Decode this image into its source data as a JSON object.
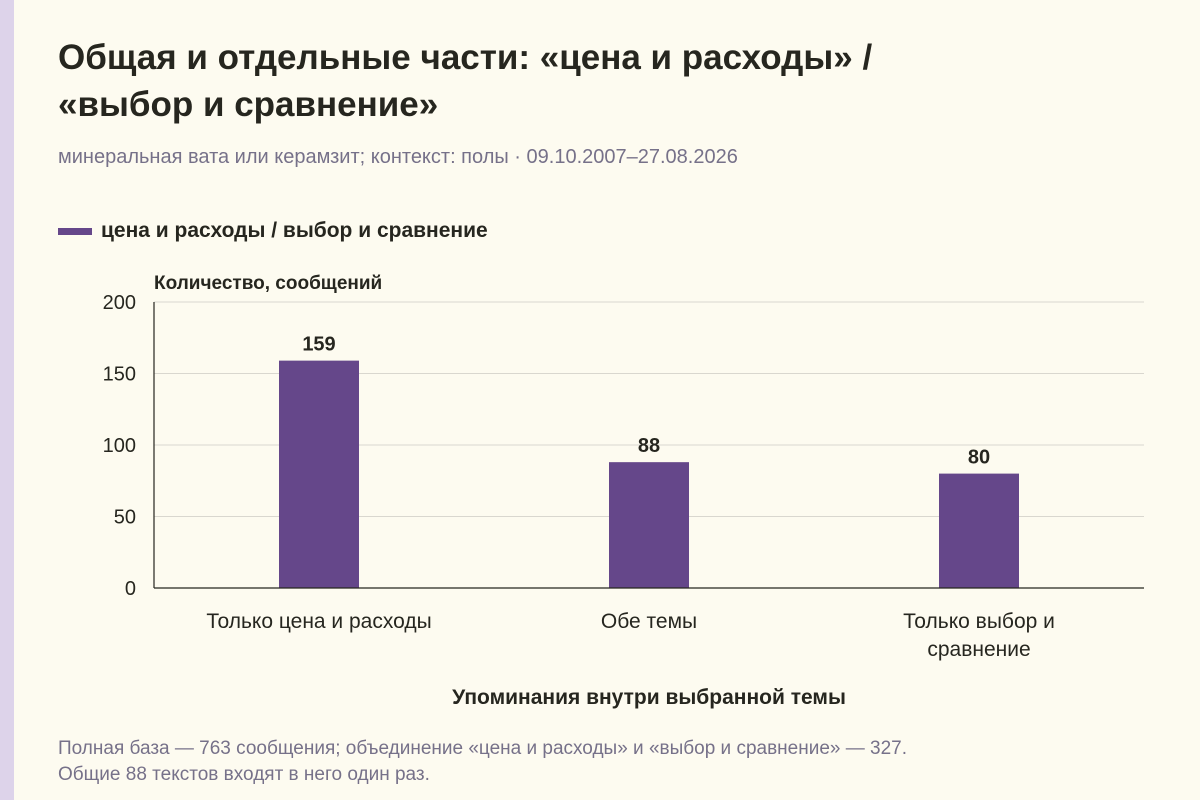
{
  "page": {
    "title_line1": "Общая и отдельные части: «цена и расходы» /",
    "title_line2": "«выбор и сравнение»",
    "subtitle": "минеральная вата или керамзит; контекст: полы · 09.10.2007–27.08.2026",
    "footnote_line1": "Полная база — 763 сообщения; объединение «цена и расходы» и «выбор и сравнение» — 327.",
    "footnote_line2": "Общие 88 текстов входят в него один раз."
  },
  "chart_data": {
    "type": "bar",
    "categories": [
      [
        "Только цена и расходы"
      ],
      [
        "Обе темы"
      ],
      [
        "Только выбор и",
        "сравнение"
      ]
    ],
    "series": [
      {
        "name": "цена и расходы / выбор и сравнение",
        "values": [
          159,
          88,
          80
        ],
        "color": "#65478a"
      }
    ],
    "ylabel": "Количество, сообщений",
    "xlabel": "Упоминания внутри выбранной темы",
    "ylim": [
      0,
      200
    ],
    "yticks": [
      0,
      50,
      100,
      150,
      200
    ],
    "grid": true,
    "legend": "top-left",
    "data_labels": true
  }
}
